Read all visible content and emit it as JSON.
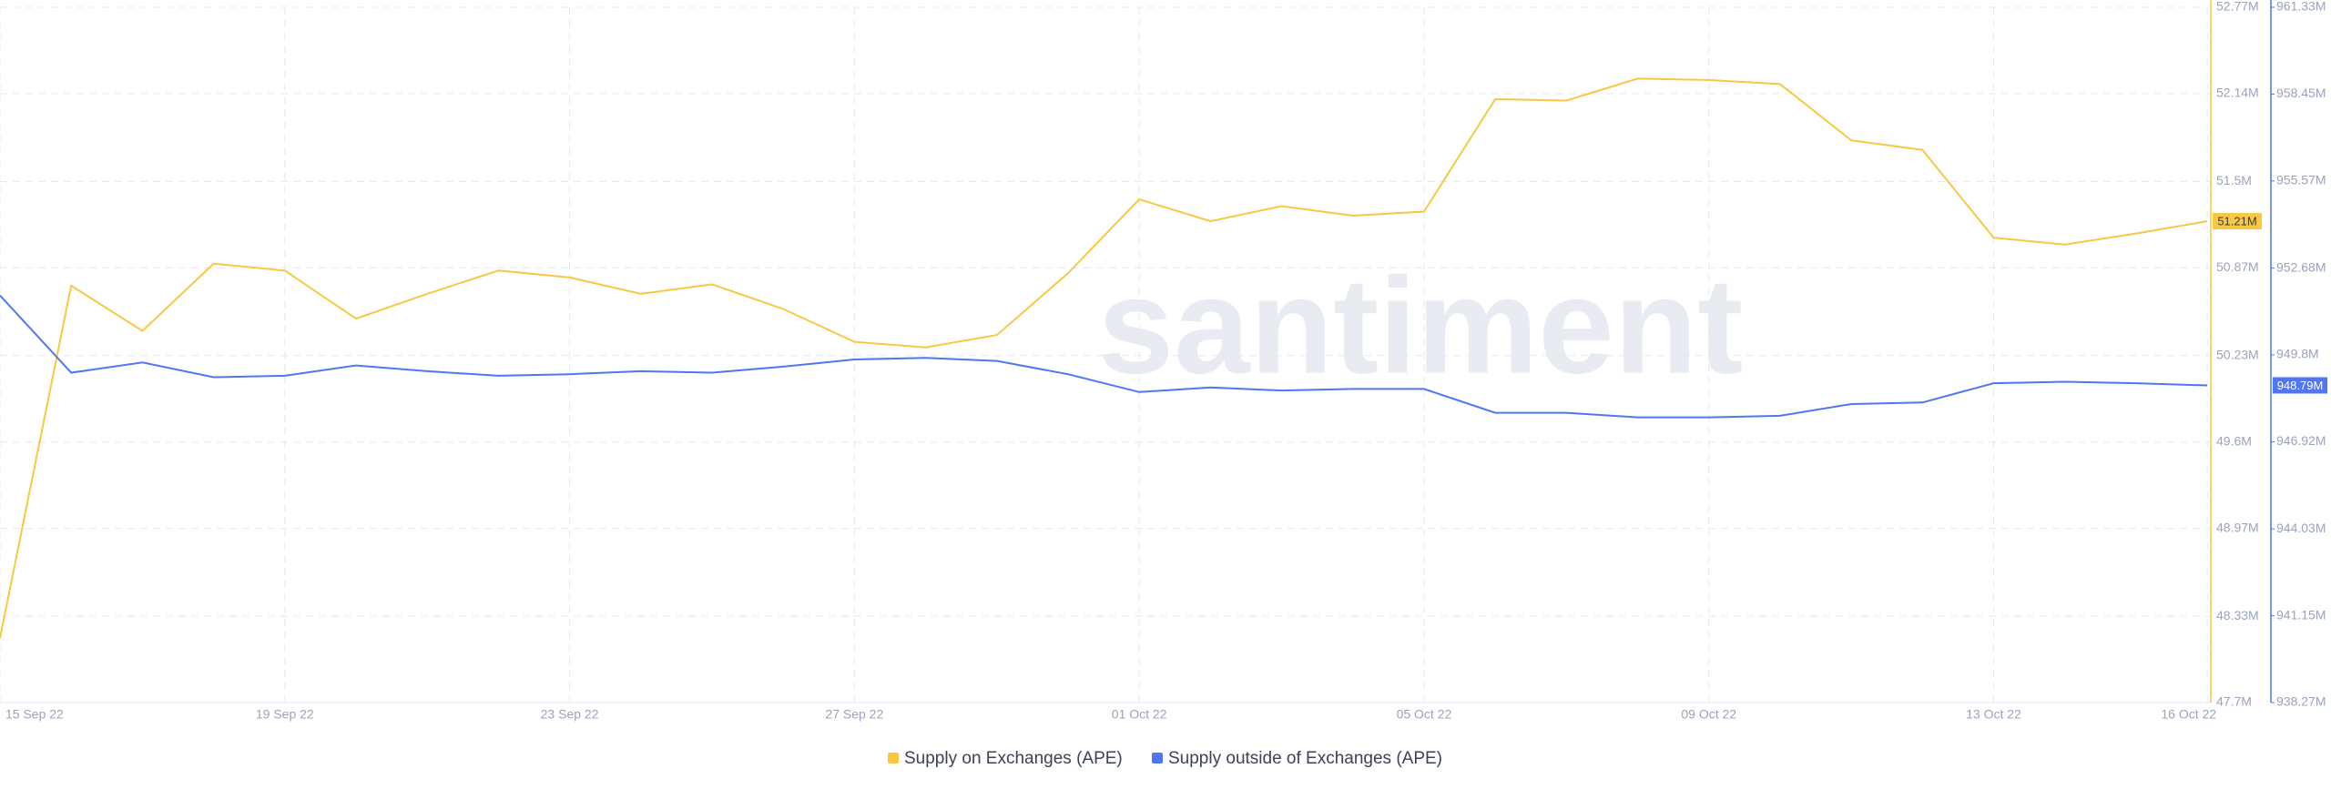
{
  "chart_data": {
    "type": "line",
    "watermark": "santiment",
    "categories": [
      "15 Sep 22",
      null,
      null,
      null,
      "19 Sep 22",
      null,
      null,
      null,
      "23 Sep 22",
      null,
      null,
      null,
      "27 Sep 22",
      null,
      null,
      null,
      "01 Oct 22",
      null,
      null,
      null,
      "05 Oct 22",
      null,
      null,
      null,
      "09 Oct 22",
      null,
      null,
      null,
      "13 Oct 22",
      null,
      null,
      "16 Oct 22"
    ],
    "series": [
      {
        "name": "Supply on Exchanges (APE)",
        "color": "#f8c842",
        "axis": "y",
        "values": [
          48.17,
          50.74,
          50.41,
          50.9,
          50.85,
          50.5,
          50.68,
          50.85,
          50.8,
          50.68,
          50.75,
          50.57,
          50.33,
          50.29,
          50.38,
          50.83,
          51.37,
          51.21,
          51.32,
          51.25,
          51.28,
          52.1,
          52.09,
          52.25,
          52.24,
          52.21,
          51.8,
          51.73,
          51.09,
          51.04,
          51.12,
          51.21
        ],
        "value_labels": [
          null,
          null,
          null,
          null,
          null,
          null,
          null,
          null,
          null,
          null,
          null,
          null,
          null,
          null,
          null,
          null,
          null,
          null,
          null,
          null,
          null,
          null,
          null,
          null,
          null,
          null,
          null,
          null,
          null,
          null,
          null,
          "51.21M"
        ]
      },
      {
        "name": "Supply outside of Exchanges (APE)",
        "color": "#5275f2",
        "axis": "y2",
        "values": [
          951.77,
          949.21,
          949.55,
          949.06,
          949.11,
          949.45,
          949.26,
          949.11,
          949.16,
          949.26,
          949.21,
          949.41,
          949.65,
          949.7,
          949.6,
          949.16,
          948.57,
          948.72,
          948.62,
          948.67,
          948.67,
          947.88,
          947.88,
          947.73,
          947.73,
          947.78,
          948.17,
          948.22,
          948.86,
          948.91,
          948.86,
          948.79
        ],
        "value_labels": [
          null,
          null,
          null,
          null,
          null,
          null,
          null,
          null,
          null,
          null,
          null,
          null,
          null,
          null,
          null,
          null,
          null,
          null,
          null,
          null,
          null,
          null,
          null,
          null,
          null,
          null,
          null,
          null,
          null,
          null,
          null,
          "948.79M"
        ]
      }
    ],
    "ylim": [
      47.7,
      52.77
    ],
    "yticks": [
      {
        "value": 47.7,
        "label": "47.7M"
      },
      {
        "value": 48.33,
        "label": "48.33M"
      },
      {
        "value": 48.97,
        "label": "48.97M"
      },
      {
        "value": 49.6,
        "label": "49.6M"
      },
      {
        "value": 50.23,
        "label": "50.23M"
      },
      {
        "value": 50.87,
        "label": "50.87M"
      },
      {
        "value": 51.5,
        "label": "51.5M"
      },
      {
        "value": 52.14,
        "label": "52.14M"
      },
      {
        "value": 52.77,
        "label": "52.77M"
      }
    ],
    "y2lim": [
      938.27,
      961.33
    ],
    "y2ticks": [
      {
        "value": 938.27,
        "label": "938.27M"
      },
      {
        "value": 941.15,
        "label": "941.15M"
      },
      {
        "value": 944.03,
        "label": "944.03M"
      },
      {
        "value": 946.92,
        "label": "946.92M"
      },
      {
        "value": 949.8,
        "label": "949.8M"
      },
      {
        "value": 952.68,
        "label": "952.68M"
      },
      {
        "value": 955.57,
        "label": "955.57M"
      },
      {
        "value": 958.45,
        "label": "958.45M"
      },
      {
        "value": 961.33,
        "label": "961.33M"
      }
    ],
    "grid": true,
    "legend": "bottom"
  }
}
